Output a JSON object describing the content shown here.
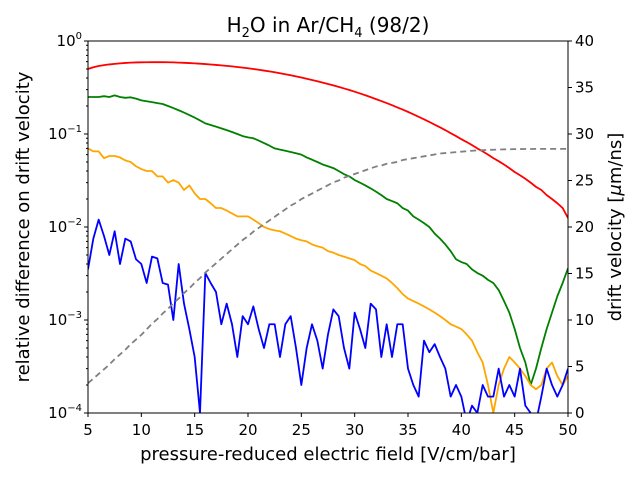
{
  "chart_data": {
    "type": "line",
    "title": "H2O in Ar/CH4 (98/2)",
    "title_parts": [
      "H",
      "2",
      "O in Ar/CH",
      "4",
      " (98/2)"
    ],
    "xlabel": "pressure-reduced electric field [V/cm/bar]",
    "ylabel_left": "relative difference on drift velocity",
    "ylabel_right_parts": [
      "drift velocity [",
      "μ",
      "m/ns]"
    ],
    "xlim": [
      5,
      50
    ],
    "ylim_left_log": [
      0.0001,
      1
    ],
    "ylim_right": [
      0,
      40
    ],
    "xticks": [
      5,
      10,
      15,
      20,
      25,
      30,
      35,
      40,
      45,
      50
    ],
    "yticks_left": [
      {
        "value": 1,
        "base": "10",
        "exp": "0"
      },
      {
        "value": 0.1,
        "base": "10",
        "exp": "−1"
      },
      {
        "value": 0.01,
        "base": "10",
        "exp": "−2"
      },
      {
        "value": 0.001,
        "base": "10",
        "exp": "−3"
      },
      {
        "value": 0.0001,
        "base": "10",
        "exp": "−4"
      }
    ],
    "yticks_right": [
      0,
      5,
      10,
      15,
      20,
      25,
      30,
      35,
      40
    ],
    "x": [
      5,
      5.5,
      6,
      6.5,
      7,
      7.5,
      8,
      8.5,
      9,
      9.5,
      10,
      10.5,
      11,
      11.5,
      12,
      12.5,
      13,
      13.5,
      14,
      14.5,
      15,
      15.5,
      16,
      16.5,
      17,
      17.5,
      18,
      18.5,
      19,
      19.5,
      20,
      20.5,
      21,
      21.5,
      22,
      22.5,
      23,
      23.5,
      24,
      24.5,
      25,
      25.5,
      26,
      26.5,
      27,
      27.5,
      28,
      28.5,
      29,
      29.5,
      30,
      30.5,
      31,
      31.5,
      32,
      32.5,
      33,
      33.5,
      34,
      34.5,
      35,
      35.5,
      36,
      36.5,
      37,
      37.5,
      38,
      38.5,
      39,
      39.5,
      40,
      40.5,
      41,
      41.5,
      42,
      42.5,
      43,
      43.5,
      44,
      44.5,
      45,
      45.5,
      46,
      46.5,
      47,
      47.5,
      48,
      48.5,
      49,
      49.5,
      50
    ],
    "series": [
      {
        "name": "red",
        "axis": "left",
        "color": "#ff0000",
        "dash": "",
        "values": [
          0.5,
          0.522,
          0.538,
          0.55,
          0.56,
          0.568,
          0.575,
          0.581,
          0.585,
          0.588,
          0.59,
          0.591,
          0.592,
          0.592,
          0.592,
          0.591,
          0.589,
          0.586,
          0.583,
          0.579,
          0.575,
          0.57,
          0.565,
          0.559,
          0.553,
          0.547,
          0.54,
          0.533,
          0.525,
          0.517,
          0.509,
          0.5,
          0.491,
          0.481,
          0.471,
          0.461,
          0.45,
          0.439,
          0.428,
          0.417,
          0.405,
          0.393,
          0.381,
          0.369,
          0.357,
          0.345,
          0.333,
          0.321,
          0.309,
          0.297,
          0.285,
          0.273,
          0.261,
          0.249,
          0.237,
          0.226,
          0.215,
          0.204,
          0.193,
          0.183,
          0.173,
          0.163,
          0.153,
          0.144,
          0.135,
          0.126,
          0.118,
          0.11,
          0.102,
          0.095,
          0.088,
          0.082,
          0.076,
          0.07,
          0.065,
          0.06,
          0.055,
          0.051,
          0.047,
          0.043,
          0.039,
          0.036,
          0.033,
          0.03,
          0.027,
          0.025,
          0.022,
          0.02,
          0.018,
          0.016,
          0.0125
        ]
      },
      {
        "name": "green",
        "axis": "left",
        "color": "#008000",
        "dash": "",
        "values": [
          0.25,
          0.25,
          0.25,
          0.255,
          0.25,
          0.26,
          0.25,
          0.245,
          0.248,
          0.24,
          0.23,
          0.225,
          0.22,
          0.215,
          0.21,
          0.2,
          0.19,
          0.18,
          0.17,
          0.16,
          0.15,
          0.14,
          0.13,
          0.125,
          0.12,
          0.115,
          0.11,
          0.105,
          0.1,
          0.095,
          0.092,
          0.09,
          0.085,
          0.08,
          0.075,
          0.07,
          0.068,
          0.066,
          0.064,
          0.062,
          0.06,
          0.056,
          0.053,
          0.05,
          0.047,
          0.045,
          0.043,
          0.04,
          0.037,
          0.035,
          0.032,
          0.03,
          0.028,
          0.026,
          0.024,
          0.022,
          0.02,
          0.019,
          0.018,
          0.016,
          0.015,
          0.013,
          0.012,
          0.011,
          0.01,
          0.0085,
          0.0075,
          0.0065,
          0.0055,
          0.0045,
          0.0042,
          0.004,
          0.0035,
          0.0032,
          0.003,
          0.0027,
          0.0025,
          0.0021,
          0.0016,
          0.0012,
          0.0008,
          0.0005,
          0.00035,
          0.0002,
          0.0003,
          0.0005,
          0.0008,
          0.0012,
          0.0018,
          0.0025,
          0.0036
        ]
      },
      {
        "name": "orange",
        "axis": "left",
        "color": "#ffa500",
        "dash": "",
        "values": [
          0.07,
          0.065,
          0.065,
          0.055,
          0.058,
          0.058,
          0.056,
          0.052,
          0.05,
          0.045,
          0.042,
          0.04,
          0.04,
          0.035,
          0.035,
          0.03,
          0.032,
          0.03,
          0.025,
          0.028,
          0.023,
          0.02,
          0.02,
          0.018,
          0.016,
          0.016,
          0.015,
          0.014,
          0.013,
          0.013,
          0.013,
          0.012,
          0.011,
          0.01,
          0.0095,
          0.0092,
          0.009,
          0.0085,
          0.008,
          0.0075,
          0.0072,
          0.007,
          0.0065,
          0.0062,
          0.006,
          0.0055,
          0.0053,
          0.005,
          0.0048,
          0.0046,
          0.0044,
          0.004,
          0.0038,
          0.0034,
          0.0032,
          0.003,
          0.0028,
          0.0025,
          0.0022,
          0.0019,
          0.0017,
          0.0016,
          0.0015,
          0.0014,
          0.0013,
          0.0012,
          0.0011,
          0.001,
          0.0009,
          0.00085,
          0.0008,
          0.0007,
          0.0006,
          0.00045,
          0.00035,
          0.0002,
          0.0001,
          0.0002,
          0.0003,
          0.0004,
          0.00035,
          0.0003,
          0.00025,
          0.0002,
          0.00018,
          0.0002,
          0.0003,
          0.00035,
          0.00025,
          0.0002,
          0.00025
        ]
      },
      {
        "name": "blue",
        "axis": "left",
        "color": "#0000ff",
        "dash": "",
        "values": [
          0.0035,
          0.0075,
          0.012,
          0.008,
          0.005,
          0.009,
          0.004,
          0.0075,
          0.007,
          0.0045,
          0.004,
          0.0025,
          0.0048,
          0.0046,
          0.0025,
          0.0024,
          0.001,
          0.004,
          0.0015,
          0.0008,
          0.0004,
          0.0001,
          0.0032,
          0.0025,
          0.002,
          0.0009,
          0.0015,
          0.0009,
          0.0004,
          0.0011,
          0.0009,
          0.0014,
          0.0008,
          0.0005,
          0.0009,
          0.0009,
          0.0004,
          0.0009,
          0.0011,
          0.0005,
          0.0002,
          0.0005,
          0.0009,
          0.0006,
          0.0003,
          0.0007,
          0.0013,
          0.0011,
          0.0005,
          0.0003,
          0.0012,
          0.0008,
          0.0005,
          0.0015,
          0.0013,
          0.0004,
          0.0009,
          0.0004,
          0.0009,
          0.0009,
          0.0003,
          0.0002,
          0.00015,
          0.0006,
          0.00045,
          0.00055,
          0.0004,
          0.0003,
          0.00015,
          0.0002,
          0.00015,
          8e-05,
          0.00012,
          0.0001,
          0.0002,
          0.00015,
          0.00015,
          0.0003,
          0.00015,
          0.0002,
          0.00015,
          0.0003,
          0.00012,
          0.0001,
          8e-05,
          0.00015,
          0.0003,
          0.0002,
          0.00015,
          0.0002,
          0.0003
        ]
      },
      {
        "name": "drift velocity",
        "axis": "right",
        "color": "#808080",
        "dash": "6,4",
        "values": [
          3.2,
          3.7,
          4.2,
          4.7,
          5.2,
          5.8,
          6.3,
          6.8,
          7.4,
          7.9,
          8.4,
          9.0,
          9.6,
          10.1,
          10.7,
          11.2,
          11.8,
          12.3,
          12.9,
          13.4,
          14.0,
          14.5,
          15.1,
          15.6,
          16.1,
          16.6,
          17.1,
          17.6,
          18.1,
          18.6,
          19.0,
          19.5,
          19.9,
          20.3,
          20.7,
          21.1,
          21.5,
          21.9,
          22.3,
          22.6,
          23.0,
          23.3,
          23.6,
          23.9,
          24.2,
          24.5,
          24.8,
          25.0,
          25.3,
          25.5,
          25.7,
          25.9,
          26.1,
          26.3,
          26.5,
          26.6,
          26.8,
          26.9,
          27.0,
          27.2,
          27.3,
          27.4,
          27.5,
          27.6,
          27.7,
          27.8,
          27.9,
          27.95,
          28.0,
          28.05,
          28.1,
          28.15,
          28.2,
          28.23,
          28.26,
          28.29,
          28.31,
          28.33,
          28.35,
          28.36,
          28.37,
          28.38,
          28.39,
          28.39,
          28.4,
          28.4,
          28.4,
          28.4,
          28.4,
          28.4,
          28.4
        ]
      }
    ],
    "grid": false,
    "legend": "none"
  }
}
